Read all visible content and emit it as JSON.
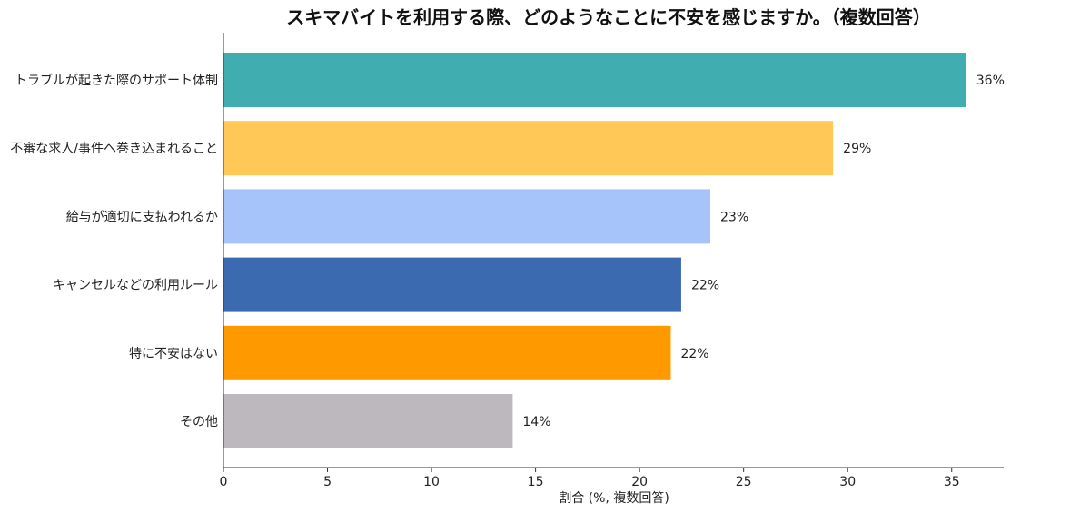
{
  "chart_data": {
    "type": "bar",
    "orientation": "horizontal",
    "title": "スキマバイトを利用する際、どのようなことに不安を感じますか。（複数回答）",
    "xlabel": "割合 (%, 複数回答)",
    "ylabel": "",
    "xlim": [
      0,
      37.5
    ],
    "xticks": [
      0,
      5,
      10,
      15,
      20,
      25,
      30,
      35
    ],
    "grid": false,
    "categories": [
      "トラブルが起きた際のサポート体制",
      "不審な求人/事件へ巻き込まれること",
      "給与が適切に支払われるか",
      "キャンセルなどの利用ルール",
      "特に不安はない",
      "その他"
    ],
    "values": [
      35.7,
      29.3,
      23.4,
      22.0,
      21.5,
      13.9
    ],
    "data_labels": [
      "36%",
      "29%",
      "23%",
      "22%",
      "22%",
      "14%"
    ],
    "colors": [
      "#40AEB1",
      "#FFC857",
      "#A7C4FA",
      "#3C6AB0",
      "#FF9900",
      "#BDB8BE"
    ]
  }
}
